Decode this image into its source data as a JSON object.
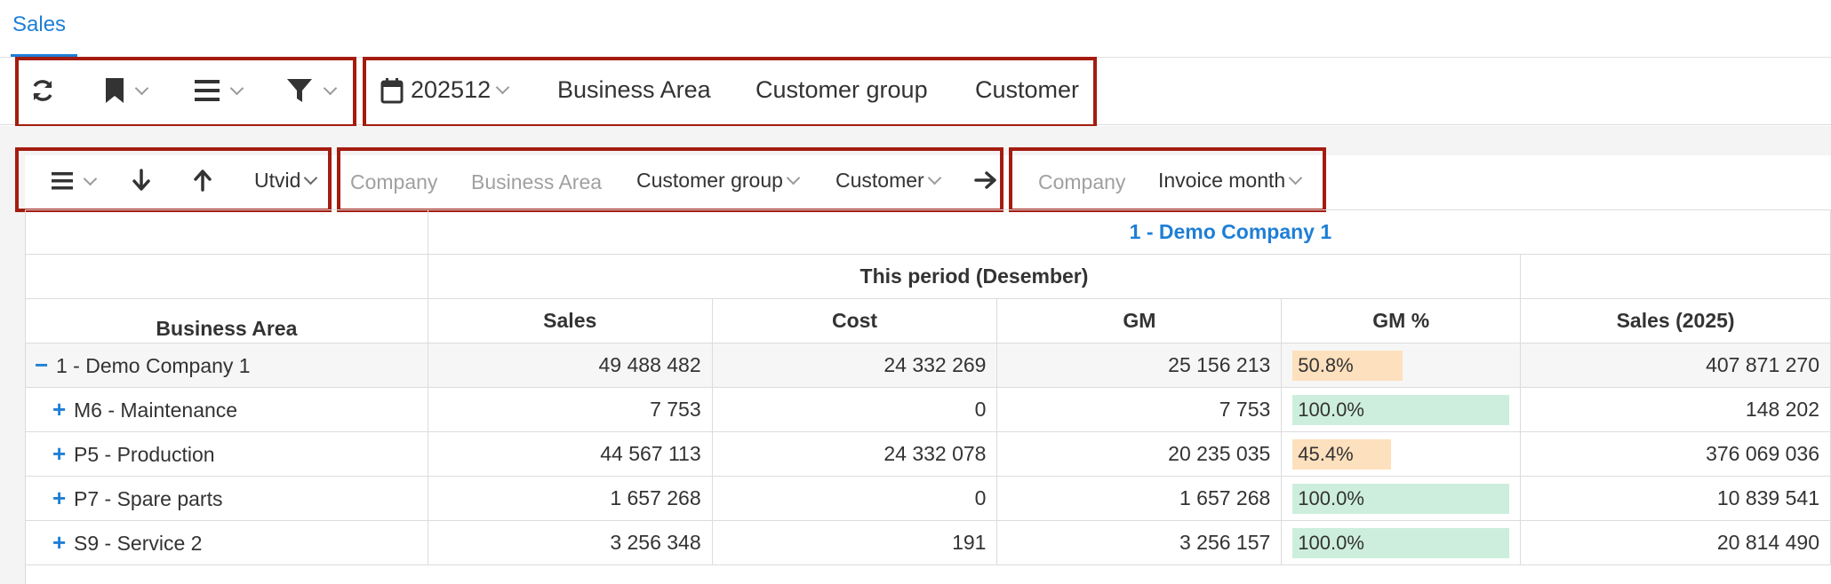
{
  "tab": {
    "label": "Sales"
  },
  "toolbar": {
    "period": "202512",
    "dimensions": [
      "Business Area",
      "Customer group",
      "Customer"
    ]
  },
  "pivot_toolbar": {
    "expand_label": "Utvid",
    "row_dims": [
      {
        "label": "Company",
        "active": false
      },
      {
        "label": "Business Area",
        "active": false
      },
      {
        "label": "Customer group",
        "active": true
      },
      {
        "label": "Customer",
        "active": true
      }
    ],
    "col_dims": [
      {
        "label": "Company",
        "active": false
      },
      {
        "label": "Invoice month",
        "active": true
      }
    ]
  },
  "grid": {
    "company_header": "1 - Demo Company 1",
    "period_header": "This period (Desember)",
    "row_header": "Business Area",
    "columns": [
      "Sales",
      "Cost",
      "GM",
      "GM %",
      "Sales (2025)"
    ],
    "rows": [
      {
        "expander": "−",
        "label": "1 - Demo Company 1",
        "sales": "49 488 482",
        "cost": "24 332 269",
        "gm": "25 156 213",
        "gm_pct_label": "50.8%",
        "gm_pct": 50.8,
        "sales_year": "407 871 270"
      },
      {
        "expander": "+",
        "label": "M6 - Maintenance",
        "sales": "7 753",
        "cost": "0",
        "gm": "7 753",
        "gm_pct_label": "100.0%",
        "gm_pct": 100.0,
        "sales_year": "148 202"
      },
      {
        "expander": "+",
        "label": "P5 - Production",
        "sales": "44 567 113",
        "cost": "24 332 078",
        "gm": "20 235 035",
        "gm_pct_label": "45.4%",
        "gm_pct": 45.4,
        "sales_year": "376 069 036"
      },
      {
        "expander": "+",
        "label": "P7 - Spare parts",
        "sales": "1 657 268",
        "cost": "0",
        "gm": "1 657 268",
        "gm_pct_label": "100.0%",
        "gm_pct": 100.0,
        "sales_year": "10 839 541"
      },
      {
        "expander": "+",
        "label": "S9 - Service 2",
        "sales": "3 256 348",
        "cost": "191",
        "gm": "3 256 157",
        "gm_pct_label": "100.0%",
        "gm_pct": 100.0,
        "sales_year": "20 814 490"
      }
    ]
  },
  "colors": {
    "accent": "#1e7fd6",
    "highlight_box": "#a41c10",
    "gm_full": "#cdeedd",
    "gm_partial": "#fde0bd"
  }
}
